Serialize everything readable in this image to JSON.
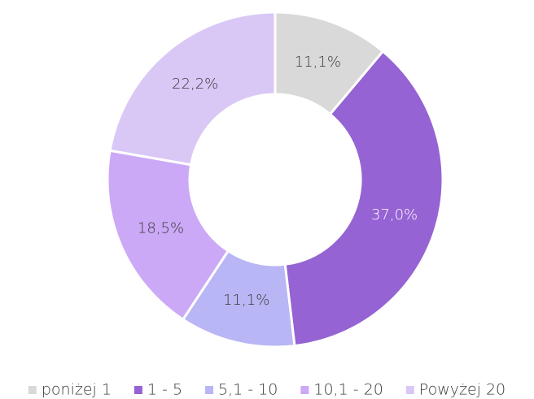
{
  "chart_data": {
    "type": "donut",
    "categories": [
      "poniżej 1",
      "1 - 5",
      "5,1 - 10",
      "10,1 - 20",
      "Powyżej 20"
    ],
    "values": [
      11.1,
      37.0,
      11.1,
      18.5,
      22.2
    ],
    "value_labels": [
      "11,1%",
      "37,0%",
      "11,1%",
      "18,5%",
      "22,2%"
    ],
    "colors": [
      "#d9d9d9",
      "#9563d3",
      "#b8b6f4",
      "#cba9f6",
      "#d9c7f6"
    ],
    "legend": "bottom"
  }
}
